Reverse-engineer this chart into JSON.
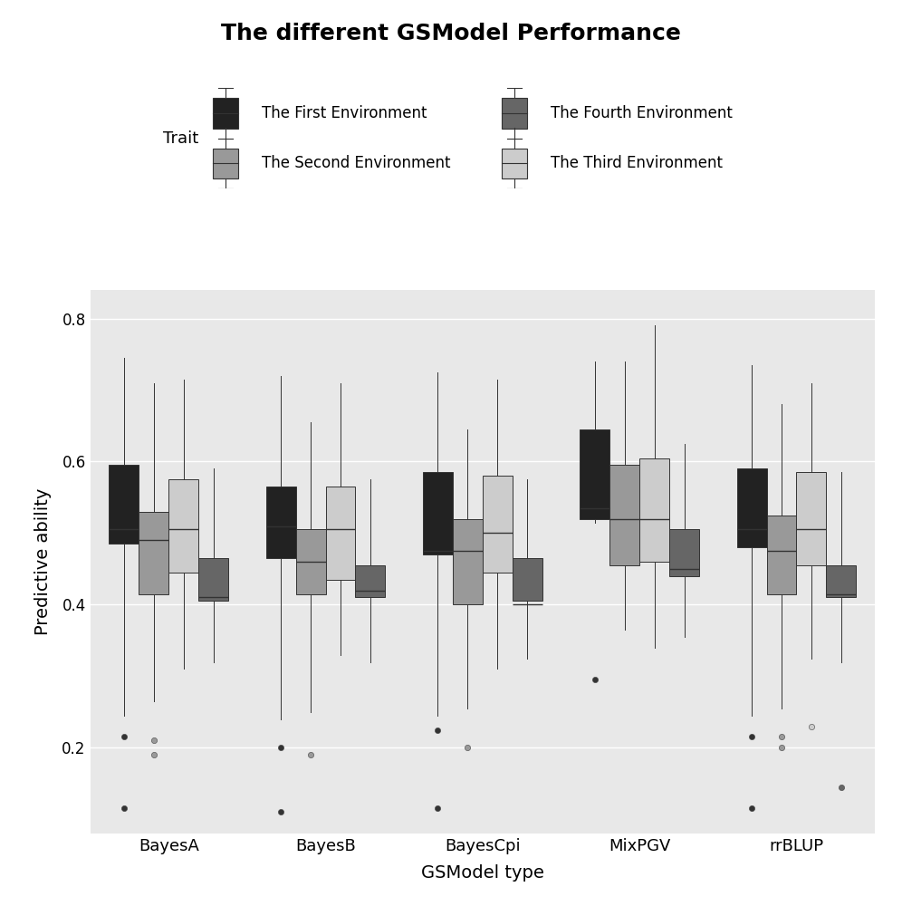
{
  "title": "The different GSModel Performance",
  "xlabel": "GSModel type",
  "ylabel": "Predictive ability",
  "legend_title": "Trait",
  "categories": [
    "BayesA",
    "BayesB",
    "BayesCpi",
    "MixPGV",
    "rrBLUP"
  ],
  "environments": [
    "The First Environment",
    "The Second Environment",
    "The Third Environment",
    "The Fourth Environment"
  ],
  "colors": {
    "env1": "#222222",
    "env2": "#999999",
    "env3": "#cccccc",
    "env4": "#666666"
  },
  "ylim": [
    0.08,
    0.84
  ],
  "yticks": [
    0.2,
    0.4,
    0.6,
    0.8
  ],
  "background_color": "#e8e8e8",
  "boxplot_data": {
    "BayesA": {
      "env1": {
        "whislo": 0.245,
        "q1": 0.485,
        "med": 0.505,
        "q3": 0.595,
        "whishi": 0.745,
        "fliers": [
          0.115,
          0.215
        ]
      },
      "env2": {
        "whislo": 0.265,
        "q1": 0.415,
        "med": 0.49,
        "q3": 0.53,
        "whishi": 0.71,
        "fliers": [
          0.21,
          0.19
        ]
      },
      "env3": {
        "whislo": 0.31,
        "q1": 0.445,
        "med": 0.505,
        "q3": 0.575,
        "whishi": 0.715,
        "fliers": []
      },
      "env4": {
        "whislo": 0.32,
        "q1": 0.405,
        "med": 0.41,
        "q3": 0.465,
        "whishi": 0.59,
        "fliers": []
      }
    },
    "BayesB": {
      "env1": {
        "whislo": 0.24,
        "q1": 0.465,
        "med": 0.51,
        "q3": 0.565,
        "whishi": 0.72,
        "fliers": [
          0.11,
          0.2
        ]
      },
      "env2": {
        "whislo": 0.25,
        "q1": 0.415,
        "med": 0.46,
        "q3": 0.505,
        "whishi": 0.655,
        "fliers": [
          0.19
        ]
      },
      "env3": {
        "whislo": 0.33,
        "q1": 0.435,
        "med": 0.505,
        "q3": 0.565,
        "whishi": 0.71,
        "fliers": []
      },
      "env4": {
        "whislo": 0.32,
        "q1": 0.41,
        "med": 0.42,
        "q3": 0.455,
        "whishi": 0.575,
        "fliers": []
      }
    },
    "BayesCpi": {
      "env1": {
        "whislo": 0.245,
        "q1": 0.47,
        "med": 0.475,
        "q3": 0.585,
        "whishi": 0.725,
        "fliers": [
          0.115,
          0.225
        ]
      },
      "env2": {
        "whislo": 0.255,
        "q1": 0.4,
        "med": 0.475,
        "q3": 0.52,
        "whishi": 0.645,
        "fliers": [
          0.2
        ]
      },
      "env3": {
        "whislo": 0.31,
        "q1": 0.445,
        "med": 0.5,
        "q3": 0.58,
        "whishi": 0.715,
        "fliers": []
      },
      "env4": {
        "whislo": 0.325,
        "q1": 0.405,
        "med": 0.4,
        "q3": 0.465,
        "whishi": 0.575,
        "fliers": []
      }
    },
    "MixPGV": {
      "env1": {
        "whislo": 0.515,
        "q1": 0.52,
        "med": 0.535,
        "q3": 0.645,
        "whishi": 0.74,
        "fliers": [
          0.295
        ]
      },
      "env2": {
        "whislo": 0.365,
        "q1": 0.455,
        "med": 0.52,
        "q3": 0.595,
        "whishi": 0.74,
        "fliers": []
      },
      "env3": {
        "whislo": 0.34,
        "q1": 0.46,
        "med": 0.52,
        "q3": 0.605,
        "whishi": 0.79,
        "fliers": []
      },
      "env4": {
        "whislo": 0.355,
        "q1": 0.44,
        "med": 0.45,
        "q3": 0.505,
        "whishi": 0.625,
        "fliers": []
      }
    },
    "rrBLUP": {
      "env1": {
        "whislo": 0.245,
        "q1": 0.48,
        "med": 0.505,
        "q3": 0.59,
        "whishi": 0.735,
        "fliers": [
          0.115,
          0.215
        ]
      },
      "env2": {
        "whislo": 0.255,
        "q1": 0.415,
        "med": 0.475,
        "q3": 0.525,
        "whishi": 0.68,
        "fliers": [
          0.215,
          0.2
        ]
      },
      "env3": {
        "whislo": 0.325,
        "q1": 0.455,
        "med": 0.505,
        "q3": 0.585,
        "whishi": 0.71,
        "fliers": [
          0.23
        ]
      },
      "env4": {
        "whislo": 0.32,
        "q1": 0.41,
        "med": 0.415,
        "q3": 0.455,
        "whishi": 0.585,
        "fliers": [
          0.145
        ]
      }
    }
  }
}
